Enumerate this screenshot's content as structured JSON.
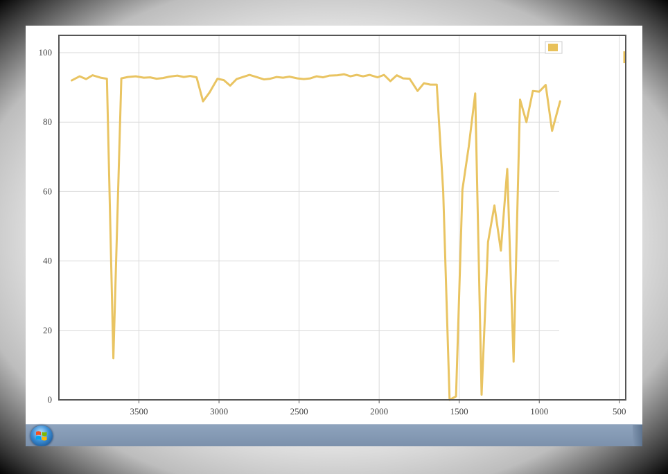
{
  "chart_data": {
    "type": "line",
    "x_reversed": true,
    "xlim": [
      4000,
      460
    ],
    "ylim": [
      0,
      105
    ],
    "x_ticks": [
      3500,
      3000,
      2500,
      2000,
      1500,
      1000,
      500
    ],
    "y_ticks": [
      0,
      20,
      40,
      60,
      80,
      100
    ],
    "grid": true,
    "legend": {
      "placement": "top-right",
      "entries": [
        {
          "name": "",
          "color": "#e8c15a"
        }
      ]
    },
    "series": [
      {
        "color": "#e8c15a",
        "x": [
          3920,
          3870,
          3830,
          3790,
          3740,
          3700,
          3660,
          3610,
          3570,
          3520,
          3470,
          3430,
          3390,
          3350,
          3310,
          3260,
          3220,
          3180,
          3140,
          3100,
          3060,
          3010,
          2970,
          2930,
          2890,
          2850,
          2810,
          2760,
          2720,
          2680,
          2640,
          2600,
          2560,
          2510,
          2470,
          2430,
          2390,
          2350,
          2310,
          2260,
          2220,
          2180,
          2140,
          2100,
          2060,
          2010,
          1970,
          1930,
          1890,
          1850,
          1810,
          1760,
          1720,
          1680,
          1640,
          1600,
          1560,
          1520,
          1480,
          1440,
          1400,
          1360,
          1320,
          1280,
          1240,
          1200,
          1160,
          1120,
          1080,
          1040,
          1000,
          960,
          920,
          870
        ],
        "y": [
          92.0,
          93.2,
          92.4,
          93.5,
          92.8,
          92.5,
          12.0,
          92.6,
          93.0,
          93.2,
          92.8,
          92.9,
          92.5,
          92.7,
          93.1,
          93.4,
          93.0,
          93.3,
          92.9,
          86.0,
          88.5,
          92.5,
          92.1,
          90.5,
          92.4,
          93.0,
          93.6,
          92.9,
          92.3,
          92.5,
          93.0,
          92.8,
          93.1,
          92.6,
          92.4,
          92.6,
          93.2,
          92.9,
          93.4,
          93.5,
          93.8,
          93.2,
          93.6,
          93.2,
          93.6,
          92.9,
          93.6,
          91.8,
          93.5,
          92.6,
          92.5,
          89.0,
          91.2,
          90.8,
          90.8,
          60.0,
          0.0,
          1.0,
          60.5,
          73.0,
          88.3,
          1.5,
          45.5,
          56.0,
          43.0,
          66.5,
          11.0,
          86.5,
          80.0,
          89.0,
          88.8,
          90.7,
          77.5,
          86.0
        ]
      }
    ]
  }
}
